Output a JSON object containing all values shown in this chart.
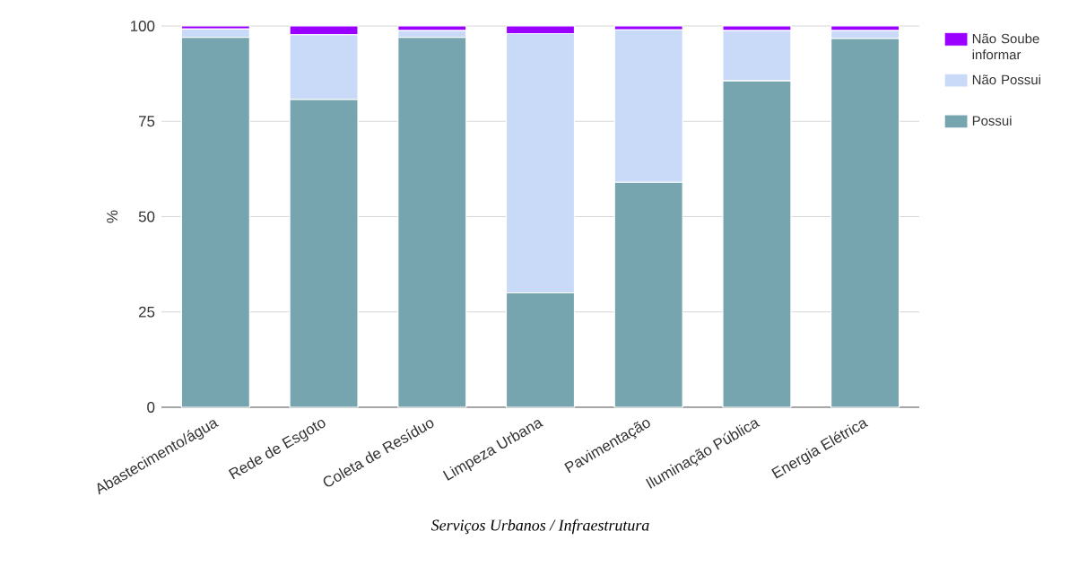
{
  "chart_data": {
    "type": "bar",
    "stacked": true,
    "xlabel": "Serviços Urbanos / Infraestrutura",
    "ylabel": "%",
    "categories": [
      "Abastecimento/água",
      "Rede de Esgoto",
      "Coleta de Resíduo",
      "Limpeza Urbana",
      "Pavimentação",
      "Iluminação Pública",
      "Energia Elétrica"
    ],
    "series": [
      {
        "name": "Possui",
        "color": "#76a5af",
        "values": [
          97,
          80.7,
          97,
          30,
          59,
          85.6,
          96.7
        ]
      },
      {
        "name": "Não Possui",
        "color": "#c9daf8",
        "values": [
          2.2,
          17,
          1.8,
          68,
          40,
          13.2,
          2.1
        ]
      },
      {
        "name": "Não Soube informar",
        "color": "#9900ff",
        "values": [
          0.8,
          2.3,
          1.2,
          2,
          1,
          1.2,
          1.2
        ]
      }
    ],
    "ylim": [
      0,
      100
    ],
    "yticks": [
      0,
      25,
      50,
      75,
      100
    ],
    "grid": "y",
    "legend": "top right"
  }
}
